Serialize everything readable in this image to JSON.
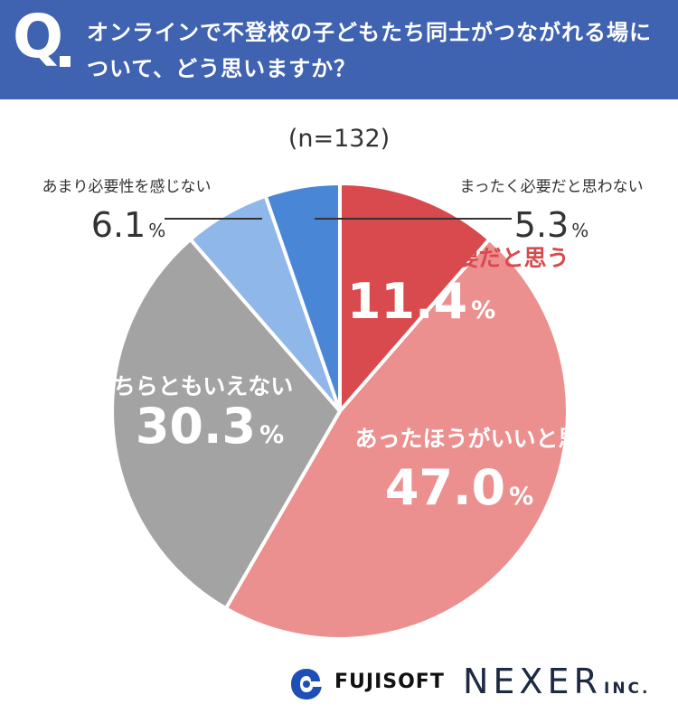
{
  "header": {
    "q_label": "Q",
    "question": "オンラインで不登校の子どもたち同士がつながれる場について、どう思いますか？"
  },
  "sample_label": "(n=132)",
  "chart_data": {
    "type": "pie",
    "title": "オンラインで不登校の子どもたち同士がつながれる場について、どう思いますか？",
    "n": 132,
    "unit": "%",
    "slices": [
      {
        "label": "とても必要だと思う",
        "value": 11.4,
        "value_text": "11.4",
        "color": "#d94a4e"
      },
      {
        "label": "あったほうがいいと思う",
        "value": 47.0,
        "value_text": "47.0",
        "color": "#ec8f8f"
      },
      {
        "label": "どちらともいえない",
        "value": 30.3,
        "value_text": "30.3",
        "color": "#a3a3a3"
      },
      {
        "label": "あまり必要性を感じない",
        "value": 6.1,
        "value_text": "6.1",
        "color": "#8fb7ea"
      },
      {
        "label": "まったく必要だと思わない",
        "value": 5.3,
        "value_text": "5.3",
        "color": "#4a86d6"
      }
    ]
  },
  "footer": {
    "fujisoft": "FUJISOFT",
    "nexer": "NEXER",
    "nexer_inc": "INC."
  },
  "colors": {
    "header_bg": "#3f62b1",
    "label_text": "#333333"
  }
}
